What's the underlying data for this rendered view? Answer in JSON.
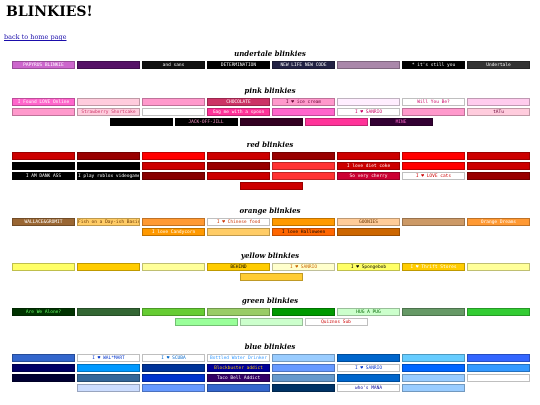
{
  "page": {
    "title": "BLINKIES!",
    "home_link": "back to home page"
  },
  "sections": [
    {
      "title": "undertale blinkies",
      "blinkies": [
        {
          "text": "PAPYRUS BLINKIE",
          "bg": "#cc66cc",
          "fg": "#ffffff"
        },
        {
          "text": "",
          "bg": "#551166",
          "fg": "#ffffff"
        },
        {
          "text": "and sans",
          "bg": "#111111",
          "fg": "#ffffff"
        },
        {
          "text": "DETERMINATION",
          "bg": "#000000",
          "fg": "#ffffff"
        },
        {
          "text": "NEW LIFE NEW CODE",
          "bg": "#222244",
          "fg": "#ffffff"
        },
        {
          "text": "",
          "bg": "#aa88aa",
          "fg": "#ffffff"
        },
        {
          "text": "* it's still you",
          "bg": "#000000",
          "fg": "#ffffff"
        },
        {
          "text": "Undertale",
          "bg": "#333333",
          "fg": "#ffffff"
        }
      ]
    },
    {
      "title": "pink blinkies",
      "blinkies": [
        {
          "text": "I Found LOVE Online",
          "bg": "#ff66cc",
          "fg": "#ffffff"
        },
        {
          "text": "",
          "bg": "#ffccdd",
          "fg": "#ff3399"
        },
        {
          "text": "",
          "bg": "#ff99cc",
          "fg": "#ffffff"
        },
        {
          "text": "CHOCOLATE",
          "bg": "#cc3366",
          "fg": "#ffffff"
        },
        {
          "text": "I ♥ ice cream",
          "bg": "#ff99cc",
          "fg": "#660033"
        },
        {
          "text": "",
          "bg": "#ffeeff",
          "fg": "#cc3399"
        },
        {
          "text": "Will You Be?",
          "bg": "#ffffff",
          "fg": "#cc0066"
        },
        {
          "text": "",
          "bg": "#ffccee",
          "fg": "#ff3399"
        },
        {
          "text": "",
          "bg": "#ff99cc",
          "fg": "#ffffff"
        },
        {
          "text": "Strawberry Shortcake",
          "bg": "#ffccdd",
          "fg": "#cc3366"
        },
        {
          "text": "",
          "bg": "#ffffff",
          "fg": "#cc0066"
        },
        {
          "text": "Gag me with a spoon",
          "bg": "#ff3399",
          "fg": "#ffffff"
        },
        {
          "text": "",
          "bg": "#ff66cc",
          "fg": "#ffffff"
        },
        {
          "text": "I ♥ SANRIO",
          "bg": "#ffffff",
          "fg": "#cc0066"
        },
        {
          "text": "",
          "bg": "#ff99cc",
          "fg": "#ffffff"
        },
        {
          "text": "tATu",
          "bg": "#ffccdd",
          "fg": "#660033"
        },
        {
          "text": "",
          "bg": "#000000",
          "fg": "#ff66cc"
        },
        {
          "text": "JACK-OFF-JILL",
          "bg": "#000000",
          "fg": "#ff99cc"
        },
        {
          "text": "",
          "bg": "#330022",
          "fg": "#ff66cc"
        },
        {
          "text": "",
          "bg": "#ff3399",
          "fg": "#ffffff"
        },
        {
          "text": "MINE",
          "bg": "#330033",
          "fg": "#ff66cc"
        }
      ]
    },
    {
      "title": "red blinkies",
      "blinkies": [
        {
          "text": "",
          "bg": "#cc0000",
          "fg": "#ffffff"
        },
        {
          "text": "",
          "bg": "#990000",
          "fg": "#ffffff"
        },
        {
          "text": "",
          "bg": "#ff0000",
          "fg": "#000000"
        },
        {
          "text": "",
          "bg": "#cc0000",
          "fg": "#ffffff"
        },
        {
          "text": "",
          "bg": "#990000",
          "fg": "#ffcc00"
        },
        {
          "text": "",
          "bg": "#cc0000",
          "fg": "#ffffff"
        },
        {
          "text": "",
          "bg": "#ff0000",
          "fg": "#ffffff"
        },
        {
          "text": "",
          "bg": "#cc0000",
          "fg": "#ffffff"
        },
        {
          "text": "",
          "bg": "#000000",
          "fg": "#ff0000"
        },
        {
          "text": "",
          "bg": "#000000",
          "fg": "#ffffff"
        },
        {
          "text": "",
          "bg": "#cc0000",
          "fg": "#ffffff"
        },
        {
          "text": "",
          "bg": "#990000",
          "fg": "#ffffff"
        },
        {
          "text": "",
          "bg": "#ff3333",
          "fg": "#ffffff"
        },
        {
          "text": "I love diet coke",
          "bg": "#cc0000",
          "fg": "#ffffff"
        },
        {
          "text": "",
          "bg": "#ff0000",
          "fg": "#ffffff"
        },
        {
          "text": "",
          "bg": "#cc0000",
          "fg": "#ffffff"
        },
        {
          "text": "I AM DANK ASS",
          "bg": "#000000",
          "fg": "#ffffff"
        },
        {
          "text": "I play roblox videogames",
          "bg": "#000000",
          "fg": "#ffffff"
        },
        {
          "text": "",
          "bg": "#880000",
          "fg": "#ffffff"
        },
        {
          "text": "",
          "bg": "#cc0000",
          "fg": "#ffffff"
        },
        {
          "text": "",
          "bg": "#ff3333",
          "fg": "#ffffff"
        },
        {
          "text": "So very cherry",
          "bg": "#cc0033",
          "fg": "#ffffff"
        },
        {
          "text": "I ♥ LOVE cats",
          "bg": "#ffffff",
          "fg": "#cc0000"
        },
        {
          "text": "",
          "bg": "#990000",
          "fg": "#ffffff"
        },
        {
          "text": "",
          "bg": "#cc0000",
          "fg": "#ffffff"
        }
      ]
    },
    {
      "title": "orange blinkies",
      "blinkies": [
        {
          "text": "WALLACE&GROMIT",
          "bg": "#996633",
          "fg": "#ffffff"
        },
        {
          "text": "Fish on a Day-ish Basis",
          "bg": "#ffcc66",
          "fg": "#663300"
        },
        {
          "text": "",
          "bg": "#ff9933",
          "fg": "#ffffff"
        },
        {
          "text": "I ♥ Chinese food",
          "bg": "#ffffff",
          "fg": "#cc3300"
        },
        {
          "text": "",
          "bg": "#ff9900",
          "fg": "#ffffff"
        },
        {
          "text": "GOONIES",
          "bg": "#ffcc99",
          "fg": "#663300"
        },
        {
          "text": "",
          "bg": "#cc9966",
          "fg": "#ffffff"
        },
        {
          "text": "Orange Dreams",
          "bg": "#ff9933",
          "fg": "#ffffff"
        },
        {
          "text": "I love Candycorn",
          "bg": "#ff9900",
          "fg": "#ffffff"
        },
        {
          "text": "",
          "bg": "#ffcc66",
          "fg": "#663300"
        },
        {
          "text": "I love Halloween",
          "bg": "#ff6600",
          "fg": "#000000"
        },
        {
          "text": "",
          "bg": "#cc6600",
          "fg": "#ffffff"
        }
      ]
    },
    {
      "title": "yellow blinkies",
      "blinkies": [
        {
          "text": "",
          "bg": "#ffff66",
          "fg": "#996600"
        },
        {
          "text": "",
          "bg": "#ffcc00",
          "fg": "#663300"
        },
        {
          "text": "",
          "bg": "#ffff99",
          "fg": "#996600"
        },
        {
          "text": "BEHIND",
          "bg": "#ffcc00",
          "fg": "#000000"
        },
        {
          "text": "I ♥ SANRIO",
          "bg": "#ffffcc",
          "fg": "#cc6600"
        },
        {
          "text": "I ♥ Spongebob",
          "bg": "#ffff66",
          "fg": "#000000"
        },
        {
          "text": "I ♥ Thrift Stores",
          "bg": "#ffcc00",
          "fg": "#ffffff"
        },
        {
          "text": "",
          "bg": "#ffff99",
          "fg": "#cc6600"
        },
        {
          "text": "",
          "bg": "#ffcc33",
          "fg": "#663300"
        }
      ]
    },
    {
      "title": "green blinkies",
      "blinkies": [
        {
          "text": "Are We Alone?",
          "bg": "#003300",
          "fg": "#66ff66"
        },
        {
          "text": "",
          "bg": "#336633",
          "fg": "#ffffff"
        },
        {
          "text": "",
          "bg": "#66cc33",
          "fg": "#003300"
        },
        {
          "text": "",
          "bg": "#99cc66",
          "fg": "#003300"
        },
        {
          "text": "",
          "bg": "#009900",
          "fg": "#ffffff"
        },
        {
          "text": "HUG A PUG",
          "bg": "#ccffcc",
          "fg": "#006600"
        },
        {
          "text": "",
          "bg": "#669966",
          "fg": "#ffffff"
        },
        {
          "text": "",
          "bg": "#33cc33",
          "fg": "#ffffff"
        },
        {
          "text": "",
          "bg": "#99ff99",
          "fg": "#006600"
        },
        {
          "text": "",
          "bg": "#ccffcc",
          "fg": "#006600"
        },
        {
          "text": "Quiznos Sub",
          "bg": "#ffffff",
          "fg": "#cc0000"
        }
      ]
    },
    {
      "title": "blue blinkies",
      "blinkies": [
        {
          "text": "",
          "bg": "#3366cc",
          "fg": "#ffffff"
        },
        {
          "text": "I ♥ WAL*MART",
          "bg": "#ffffff",
          "fg": "#0033cc"
        },
        {
          "text": "I ♥ SCUBA",
          "bg": "#ffffff",
          "fg": "#0066cc"
        },
        {
          "text": "Bottled Water Drinker",
          "bg": "#ffffff",
          "fg": "#3399ff"
        },
        {
          "text": "",
          "bg": "#99ccff",
          "fg": "#ffffff"
        },
        {
          "text": "",
          "bg": "#0066cc",
          "fg": "#ffffff"
        },
        {
          "text": "",
          "bg": "#66ccff",
          "fg": "#003366"
        },
        {
          "text": "",
          "bg": "#3366ff",
          "fg": "#ffffff"
        },
        {
          "text": "",
          "bg": "#000066",
          "fg": "#ffffff"
        },
        {
          "text": "",
          "bg": "#0099ff",
          "fg": "#ffffff"
        },
        {
          "text": "",
          "bg": "#003399",
          "fg": "#ffffff"
        },
        {
          "text": "Blockbuster addict",
          "bg": "#000099",
          "fg": "#ffcc00"
        },
        {
          "text": "",
          "bg": "#6699ff",
          "fg": "#ffffff"
        },
        {
          "text": "I ♥ SANRIO",
          "bg": "#ffffff",
          "fg": "#0033cc"
        },
        {
          "text": "",
          "bg": "#0066ff",
          "fg": "#ffffff"
        },
        {
          "text": "",
          "bg": "#3399ff",
          "fg": "#ffffff"
        },
        {
          "text": "",
          "bg": "#000033",
          "fg": "#66ccff"
        },
        {
          "text": "",
          "bg": "#336699",
          "fg": "#ffffff"
        },
        {
          "text": "",
          "bg": "#0033cc",
          "fg": "#ffffff"
        },
        {
          "text": "Taco Bell Addict",
          "bg": "#330066",
          "fg": "#ffffff"
        },
        {
          "text": "",
          "bg": "#6699cc",
          "fg": "#ffffff"
        },
        {
          "text": "",
          "bg": "#0066cc",
          "fg": "#ffffff"
        },
        {
          "text": "",
          "bg": "#99ccff",
          "fg": "#003366"
        },
        {
          "text": "",
          "bg": "#ffffff",
          "fg": "#000066"
        },
        {
          "text": "",
          "bg": "#ccddff",
          "fg": "#003399"
        },
        {
          "text": "",
          "bg": "#6699ff",
          "fg": "#ffffff"
        },
        {
          "text": "",
          "bg": "#3366cc",
          "fg": "#ffffff"
        },
        {
          "text": "",
          "bg": "#003366",
          "fg": "#ffffff"
        },
        {
          "text": "who's MANA",
          "bg": "#ffffff",
          "fg": "#000099"
        },
        {
          "text": "",
          "bg": "#99ccff",
          "fg": "#003366"
        }
      ]
    }
  ]
}
